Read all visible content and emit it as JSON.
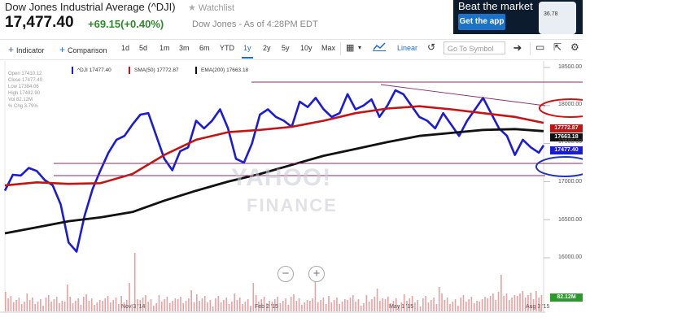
{
  "header": {
    "title": "Dow Jones Industrial Average (^DJI)",
    "watchlist_label": "Watchlist",
    "price": "17,477.40",
    "change": "+69.15(+0.40%)",
    "as_of": "Dow Jones - As of 4:28PM EDT"
  },
  "ad": {
    "headline": "Beat the market",
    "cta": "Get the app",
    "phone_value": "36.78"
  },
  "toolbar": {
    "indicator_label": "Indicator",
    "comparison_label": "Comparison",
    "ranges": [
      "1d",
      "5d",
      "1m",
      "3m",
      "6m",
      "YTD",
      "1y",
      "2y",
      "5y",
      "10y",
      "Max"
    ],
    "selected_range": "1y",
    "scale_label": "Linear",
    "symbol_placeholder": "Go To Symbol"
  },
  "ohlc": {
    "open": "Open 17410.12",
    "close": "Close 17477.40",
    "low": "Low 17384.06",
    "high": "High 17492.90",
    "vol": "Vol 82.12M",
    "chg": "% Chg 3.79%"
  },
  "legend": {
    "dji": "^DJI 17477.40",
    "sma": "SMA(50) 17772.87",
    "ema": "EMA(200) 17663.18"
  },
  "tags": {
    "sma": "17772.87",
    "ema": "17663.18",
    "dji": "17477.40",
    "vol": "82.12M"
  },
  "watermark": {
    "line1": "YAHOO!",
    "line2": "FINANCE"
  },
  "colors": {
    "dji": "#1a1adb",
    "sma": "#c41414",
    "ema": "#111111",
    "volume": "#e8a0a0",
    "annotation_red": "#d01010",
    "annotation_blue": "#2233bb",
    "trendline": "#8b2a6b"
  },
  "chart_data": {
    "type": "line",
    "title": "",
    "xlabel": "",
    "ylabel": "",
    "ylim": [
      15800,
      18650
    ],
    "yticks": [
      "18500.00",
      "18000.00",
      "17500.00",
      "17000.00",
      "16500.00",
      "16000.00"
    ],
    "ytick_values": [
      18500,
      18000,
      17500,
      17000,
      16500,
      16000
    ],
    "xticks": [
      "Nov 3 '14",
      "Feb 2 '15",
      "May 1 '15",
      "Aug 3 '15"
    ],
    "xtick_days": [
      63,
      154,
      242,
      336
    ],
    "x_unit": "days from start of displayed range (about Sep 2014 to Aug 2015)",
    "series": [
      {
        "name": "^DJI",
        "color": "#1a1adb",
        "x": [
          0,
          5,
          10,
          15,
          20,
          25,
          30,
          35,
          40,
          45,
          50,
          55,
          60,
          65,
          70,
          75,
          80,
          85,
          90,
          95,
          100,
          105,
          110,
          115,
          120,
          125,
          130,
          135,
          140,
          145,
          150,
          155,
          160,
          165,
          170,
          175,
          180,
          185,
          190,
          195,
          200,
          205,
          210,
          215,
          220,
          225,
          230,
          235,
          240,
          245,
          250,
          255,
          260,
          265,
          270,
          275,
          280,
          285,
          290,
          295,
          300,
          305,
          310,
          315,
          320,
          325,
          330,
          335,
          338
        ],
        "values": [
          16880,
          17090,
          17080,
          17180,
          17140,
          17020,
          16950,
          16700,
          16200,
          16080,
          16550,
          16900,
          17150,
          17380,
          17550,
          17600,
          17750,
          17880,
          17900,
          17600,
          17300,
          17150,
          17400,
          17450,
          17800,
          17700,
          17800,
          17950,
          17700,
          17300,
          17250,
          17500,
          17880,
          17950,
          17850,
          17800,
          17720,
          18050,
          17980,
          18100,
          17950,
          17850,
          17900,
          18150,
          17950,
          18000,
          18080,
          17850,
          18000,
          18200,
          18150,
          18000,
          17850,
          17800,
          17700,
          17900,
          17750,
          17600,
          17800,
          17950,
          18100,
          17900,
          17700,
          17600,
          17350,
          17550,
          17450,
          17380,
          17477
        ]
      },
      {
        "name": "SMA(50)",
        "color": "#c41414",
        "x": [
          0,
          20,
          40,
          60,
          80,
          100,
          120,
          140,
          160,
          180,
          200,
          220,
          240,
          260,
          280,
          300,
          320,
          338
        ],
        "values": [
          16950,
          16990,
          16970,
          16980,
          17100,
          17350,
          17550,
          17650,
          17680,
          17720,
          17800,
          17900,
          17960,
          17990,
          17950,
          17900,
          17850,
          17772
        ]
      },
      {
        "name": "EMA(200)",
        "color": "#111111",
        "x": [
          0,
          20,
          40,
          60,
          80,
          100,
          120,
          140,
          160,
          180,
          200,
          220,
          240,
          260,
          280,
          300,
          320,
          338
        ],
        "values": [
          16320,
          16400,
          16480,
          16530,
          16600,
          16750,
          16880,
          17000,
          17100,
          17220,
          17340,
          17430,
          17520,
          17600,
          17640,
          17680,
          17690,
          17663
        ]
      }
    ],
    "legend_position": "top-left",
    "grid": false
  }
}
